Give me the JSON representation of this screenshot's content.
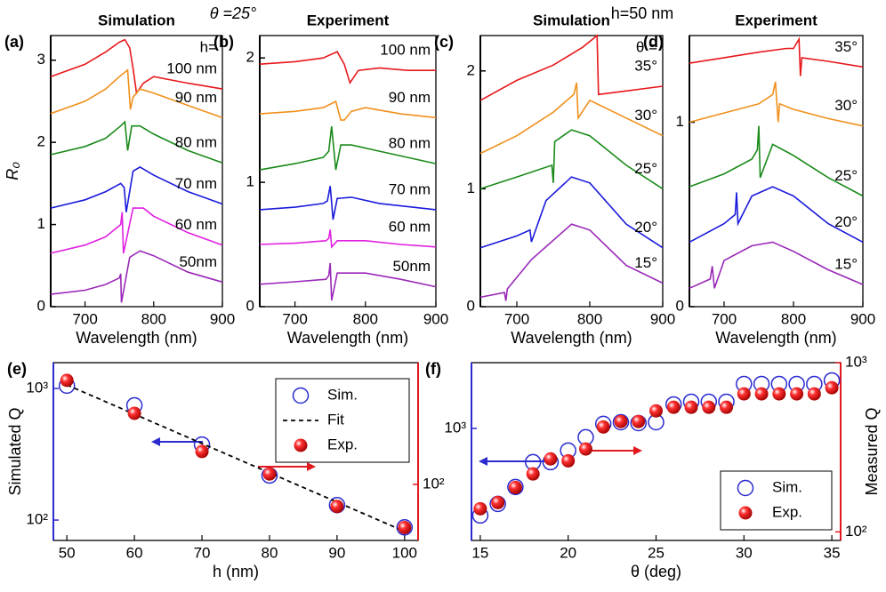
{
  "annotations": [
    "θ =25°",
    "h=50 nm"
  ],
  "chart_data": [
    {
      "type": "line",
      "panel": "(a)",
      "title": "Simulation",
      "xlabel": "Wavelength (nm)",
      "ylabel": "R₀",
      "legend_title": "h=",
      "xlim": [
        650,
        900
      ],
      "xticks": [
        700,
        800,
        900
      ],
      "ylim": [
        0,
        3.3
      ],
      "yticks": [
        0,
        1,
        2,
        3
      ],
      "series": [
        {
          "name": "100 nm",
          "color": "#e8171b",
          "x": [
            650,
            700,
            730,
            750,
            758,
            765,
            770,
            775,
            785,
            800,
            850,
            900
          ],
          "values": [
            2.8,
            2.95,
            3.1,
            3.22,
            3.25,
            3.15,
            2.9,
            2.6,
            2.72,
            2.8,
            2.72,
            2.65
          ]
        },
        {
          "name": "90 nm",
          "color": "#f0901c",
          "x": [
            650,
            700,
            730,
            750,
            762,
            766,
            770,
            780,
            800,
            850,
            900
          ],
          "values": [
            2.35,
            2.5,
            2.65,
            2.8,
            2.88,
            2.4,
            2.55,
            2.65,
            2.6,
            2.45,
            2.3
          ]
        },
        {
          "name": "80 nm",
          "color": "#1a8a1a",
          "x": [
            650,
            700,
            730,
            752,
            758,
            762,
            768,
            780,
            800,
            850,
            900
          ],
          "values": [
            1.85,
            1.95,
            2.05,
            2.2,
            2.25,
            1.9,
            2.2,
            2.2,
            2.1,
            1.9,
            1.75
          ]
        },
        {
          "name": "70 nm",
          "color": "#1a1adc",
          "x": [
            650,
            700,
            730,
            752,
            757,
            760,
            770,
            780,
            800,
            850,
            900
          ],
          "values": [
            1.2,
            1.3,
            1.4,
            1.5,
            1.45,
            1.15,
            1.65,
            1.7,
            1.6,
            1.4,
            1.25
          ]
        },
        {
          "name": "60 nm",
          "color": "#e020e0",
          "x": [
            650,
            700,
            730,
            752,
            754,
            756,
            770,
            785,
            800,
            850,
            900
          ],
          "values": [
            0.65,
            0.75,
            0.85,
            1.0,
            1.15,
            0.65,
            1.2,
            1.2,
            1.1,
            0.9,
            0.75
          ]
        },
        {
          "name": "50nm",
          "color": "#9a28b8",
          "x": [
            650,
            700,
            730,
            750,
            752,
            753,
            765,
            780,
            800,
            850,
            900
          ],
          "values": [
            0.15,
            0.2,
            0.27,
            0.35,
            0.4,
            0.05,
            0.6,
            0.68,
            0.62,
            0.42,
            0.3
          ]
        }
      ]
    },
    {
      "type": "line",
      "panel": "(b)",
      "title": "Experiment",
      "xlabel": "Wavelength (nm)",
      "xlim": [
        650,
        900
      ],
      "xticks": [
        700,
        800,
        900
      ],
      "ylim": [
        0,
        2.18
      ],
      "yticks": [
        0,
        1,
        2
      ],
      "series": [
        {
          "name": "100 nm",
          "color": "#e8171b",
          "x": [
            650,
            700,
            740,
            760,
            770,
            778,
            790,
            820,
            860,
            900
          ],
          "values": [
            1.95,
            1.97,
            2.0,
            2.05,
            1.95,
            1.8,
            1.9,
            1.92,
            1.9,
            1.9
          ]
        },
        {
          "name": "90 nm",
          "color": "#f0901c",
          "x": [
            650,
            700,
            740,
            758,
            765,
            770,
            780,
            800,
            850,
            900
          ],
          "values": [
            1.55,
            1.57,
            1.6,
            1.65,
            1.5,
            1.5,
            1.57,
            1.6,
            1.55,
            1.52
          ]
        },
        {
          "name": "80 nm",
          "color": "#1a8a1a",
          "x": [
            650,
            700,
            740,
            748,
            752,
            758,
            765,
            780,
            820,
            900
          ],
          "values": [
            1.1,
            1.15,
            1.2,
            1.25,
            1.45,
            1.1,
            1.3,
            1.3,
            1.25,
            1.15
          ]
        },
        {
          "name": "70 nm",
          "color": "#1a1adc",
          "x": [
            650,
            700,
            740,
            746,
            750,
            754,
            760,
            780,
            820,
            900
          ],
          "values": [
            0.78,
            0.8,
            0.83,
            0.85,
            0.97,
            0.7,
            0.87,
            0.88,
            0.83,
            0.78
          ]
        },
        {
          "name": "60 nm",
          "color": "#e020e0",
          "x": [
            650,
            700,
            744,
            748,
            750,
            752,
            760,
            800,
            850,
            900
          ],
          "values": [
            0.5,
            0.51,
            0.53,
            0.55,
            0.62,
            0.48,
            0.53,
            0.53,
            0.5,
            0.48
          ]
        },
        {
          "name": "50nm",
          "color": "#9a28b8",
          "x": [
            650,
            700,
            744,
            748,
            750,
            752,
            760,
            800,
            850,
            900
          ],
          "values": [
            0.18,
            0.2,
            0.22,
            0.25,
            0.35,
            0.05,
            0.27,
            0.27,
            0.22,
            0.16
          ]
        }
      ]
    },
    {
      "type": "line",
      "panel": "(c)",
      "title": "Simulation",
      "xlabel": "Wavelength (nm)",
      "legend_title": "θ =",
      "xlim": [
        650,
        900
      ],
      "xticks": [
        700,
        800,
        900
      ],
      "ylim": [
        0,
        2.3
      ],
      "yticks": [
        0,
        1,
        2
      ],
      "series": [
        {
          "name": "35°",
          "color": "#e8171b",
          "x": [
            650,
            700,
            750,
            790,
            810,
            812,
            850,
            900
          ],
          "values": [
            1.75,
            1.92,
            2.05,
            2.2,
            2.3,
            1.8,
            1.83,
            1.87
          ]
        },
        {
          "name": "30°",
          "color": "#f0901c",
          "x": [
            650,
            700,
            750,
            778,
            782,
            784,
            800,
            850,
            900
          ],
          "values": [
            1.3,
            1.45,
            1.65,
            1.8,
            1.9,
            1.6,
            1.75,
            1.6,
            1.45
          ]
        },
        {
          "name": "25°",
          "color": "#1a8a1a",
          "x": [
            650,
            700,
            748,
            750,
            752,
            775,
            800,
            850,
            900
          ],
          "values": [
            1.0,
            1.1,
            1.2,
            1.05,
            1.4,
            1.5,
            1.45,
            1.2,
            1.0
          ]
        },
        {
          "name": "20°",
          "color": "#1a1adc",
          "x": [
            650,
            700,
            718,
            720,
            740,
            775,
            800,
            850,
            900
          ],
          "values": [
            0.5,
            0.6,
            0.65,
            0.55,
            0.9,
            1.1,
            1.05,
            0.7,
            0.5
          ]
        },
        {
          "name": "15°",
          "color": "#9a28b8",
          "x": [
            650,
            683,
            685,
            687,
            720,
            775,
            800,
            850,
            900
          ],
          "values": [
            0.08,
            0.12,
            0.05,
            0.15,
            0.4,
            0.7,
            0.65,
            0.35,
            0.2
          ]
        }
      ]
    },
    {
      "type": "line",
      "panel": "(d)",
      "title": "Experiment",
      "xlabel": "Wavelength (nm)",
      "xlim": [
        650,
        900
      ],
      "xticks": [
        700,
        800,
        900
      ],
      "ylim": [
        0,
        1.47
      ],
      "yticks": [
        0,
        1
      ],
      "series": [
        {
          "name": "35°",
          "color": "#e8171b",
          "x": [
            650,
            700,
            750,
            790,
            800,
            808,
            810,
            812,
            850,
            900
          ],
          "values": [
            1.32,
            1.35,
            1.38,
            1.4,
            1.4,
            1.45,
            1.25,
            1.35,
            1.33,
            1.3
          ]
        },
        {
          "name": "30°",
          "color": "#f0901c",
          "x": [
            650,
            700,
            750,
            770,
            774,
            778,
            780,
            800,
            850,
            900
          ],
          "values": [
            1.0,
            1.05,
            1.1,
            1.15,
            1.22,
            1.0,
            1.1,
            1.07,
            1.02,
            0.98
          ]
        },
        {
          "name": "25°",
          "color": "#1a8a1a",
          "x": [
            650,
            700,
            740,
            748,
            750,
            752,
            770,
            800,
            850,
            900
          ],
          "values": [
            0.65,
            0.72,
            0.8,
            0.85,
            0.98,
            0.7,
            0.88,
            0.82,
            0.7,
            0.6
          ]
        },
        {
          "name": "20°",
          "color": "#1a1adc",
          "x": [
            650,
            700,
            716,
            718,
            720,
            740,
            770,
            800,
            850,
            900
          ],
          "values": [
            0.35,
            0.45,
            0.5,
            0.62,
            0.45,
            0.6,
            0.65,
            0.6,
            0.45,
            0.35
          ]
        },
        {
          "name": "15°",
          "color": "#9a28b8",
          "x": [
            650,
            680,
            683,
            686,
            700,
            740,
            770,
            800,
            850,
            900
          ],
          "values": [
            0.1,
            0.15,
            0.22,
            0.1,
            0.25,
            0.33,
            0.35,
            0.3,
            0.2,
            0.12
          ]
        }
      ]
    },
    {
      "type": "scatter",
      "panel": "(e)",
      "xlabel": "h (nm)",
      "ylabel": "Simulated Q",
      "ylog": true,
      "y_color": "#2b2bd0",
      "y2_color": "#e0191e",
      "legend": "upper right",
      "xlim": [
        48,
        102
      ],
      "xticks": [
        50,
        60,
        70,
        80,
        90,
        100
      ],
      "ylim": [
        70,
        1570
      ],
      "yticks": [
        {
          "value": 100,
          "label": "10²"
        },
        {
          "value": 1000,
          "label": "10³"
        }
      ],
      "y2lim": [
        37.5,
        842
      ],
      "y2ticks": [
        {
          "value": 100,
          "label": "10²"
        }
      ],
      "series": [
        {
          "name": "Sim.",
          "marker": "open-circle",
          "color": "#2b2bd0",
          "x": [
            50,
            60,
            70,
            80,
            90,
            100
          ],
          "values": [
            1050,
            744,
            375,
            218,
            130,
            88
          ]
        },
        {
          "name": "Fit",
          "marker": "dashed-line",
          "color": "#000000",
          "x": [
            50,
            100
          ],
          "values": [
            1064,
            82
          ]
        },
        {
          "name": "Exp.",
          "marker": "sphere",
          "color": "#e0191e",
          "axis": "y2",
          "x": [
            50,
            60,
            70,
            80,
            90,
            100
          ],
          "values": [
            618,
            347,
            178,
            120,
            68,
            47
          ]
        }
      ]
    },
    {
      "type": "scatter",
      "panel": "(f)",
      "xlabel": "θ (deg)",
      "y2label": "Measured Q",
      "ylog": true,
      "y_color": "#2b2bd0",
      "y2_color": "#e0191e",
      "legend": "lower right",
      "xlim": [
        14.5,
        35.5
      ],
      "xticks": [
        15,
        20,
        25,
        30,
        35
      ],
      "ylim": [
        217,
        2450
      ],
      "yticks": [
        {
          "value": 1000,
          "label": "10³"
        }
      ],
      "y2lim": [
        89,
        1000
      ],
      "y2ticks": [
        {
          "value": 100,
          "label": "10²"
        },
        {
          "value": 1000,
          "label": "10³"
        }
      ],
      "series": [
        {
          "name": "Sim.",
          "marker": "open-circle",
          "color": "#2b2bd0",
          "x": [
            15,
            16,
            17,
            18,
            19,
            20,
            21,
            22,
            23,
            24,
            25,
            26,
            27,
            28,
            29,
            30,
            31,
            32,
            33,
            34,
            35
          ],
          "values": [
            305,
            357,
            450,
            631,
            631,
            739,
            886,
            1063,
            1088,
            1075,
            1088,
            1387,
            1438,
            1438,
            1438,
            1833,
            1833,
            1833,
            1833,
            1833,
            1924
          ]
        },
        {
          "name": "Exp.",
          "marker": "sphere",
          "color": "#e0191e",
          "axis": "y2",
          "x": [
            15,
            16,
            17,
            18,
            19,
            20,
            21,
            22,
            23,
            24,
            25,
            26,
            27,
            28,
            29,
            30,
            31,
            32,
            33,
            34,
            35
          ],
          "values": [
            137,
            149,
            183,
            220,
            270,
            263,
            309,
            417,
            449,
            449,
            519,
            545,
            545,
            545,
            545,
            654,
            654,
            654,
            654,
            654,
            711
          ]
        }
      ]
    }
  ]
}
